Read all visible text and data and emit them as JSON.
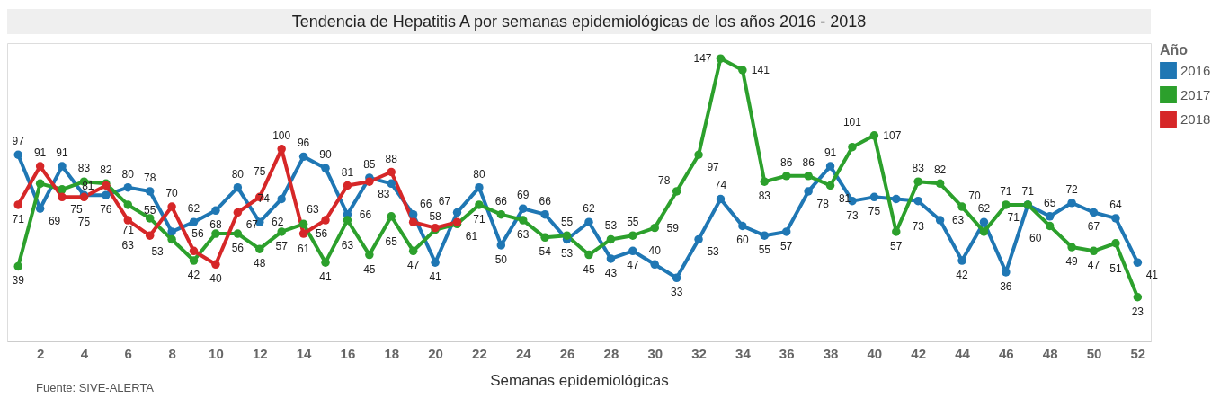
{
  "chart_data": {
    "type": "line",
    "title": "Tendencia de Hepatitis A por semanas epidemiológicas de los años 2016 - 2018",
    "xlabel": "Semanas epidemiológicas",
    "legend_title": "Año",
    "annotations": [
      "Fuente: SIVE-ALERTA"
    ],
    "x": [
      1,
      2,
      3,
      4,
      5,
      6,
      7,
      8,
      9,
      10,
      11,
      12,
      13,
      14,
      15,
      16,
      17,
      18,
      19,
      20,
      21,
      22,
      23,
      24,
      25,
      26,
      27,
      28,
      29,
      30,
      31,
      32,
      33,
      34,
      35,
      36,
      37,
      38,
      39,
      40,
      41,
      42,
      43,
      44,
      45,
      46,
      47,
      48,
      49,
      50,
      51,
      52
    ],
    "series": [
      {
        "name": "2016",
        "color": "#1f77b4",
        "values": [
          97,
          69,
          91,
          76,
          76,
          80,
          78,
          57,
          62,
          68,
          80,
          62,
          74,
          96,
          90,
          66,
          85,
          82,
          66,
          41,
          67,
          80,
          50,
          69,
          66,
          53,
          62,
          43,
          47,
          40,
          33,
          53,
          74,
          60,
          55,
          57,
          78,
          91,
          73,
          75,
          74,
          73,
          63,
          42,
          62,
          36,
          71,
          65,
          72,
          67,
          64,
          41
        ],
        "value_labels": [
          "97",
          "69",
          "91",
          null,
          "76",
          "80",
          "78",
          null,
          "62",
          "68",
          "80",
          "62",
          "74",
          "96",
          "90",
          "66",
          "85",
          null,
          "66",
          "41",
          "67",
          "80",
          "50",
          "69",
          "66",
          "53",
          "62",
          "43",
          "47",
          "40",
          "33",
          "53",
          "74",
          "60",
          "55",
          "57",
          "78",
          "91",
          "73",
          "75",
          null,
          "73",
          "63",
          "42",
          "62",
          "36",
          "71",
          "65",
          "72",
          "67",
          "64",
          "41"
        ]
      },
      {
        "name": "2017",
        "color": "#2ca02c",
        "values": [
          39,
          82,
          79,
          83,
          82,
          71,
          64,
          53,
          42,
          56,
          56,
          48,
          57,
          61,
          41,
          63,
          45,
          65,
          47,
          58,
          61,
          71,
          66,
          63,
          54,
          55,
          45,
          53,
          55,
          59,
          78,
          97,
          147,
          141,
          83,
          86,
          86,
          81,
          101,
          107,
          57,
          83,
          82,
          70,
          57,
          71,
          71,
          60,
          49,
          47,
          51,
          23
        ],
        "value_labels": [
          "39",
          null,
          null,
          "83",
          "82",
          "71",
          null,
          "53",
          "42",
          "56",
          "56",
          "48",
          "57",
          "61",
          "41",
          "63",
          "45",
          "65",
          "47",
          "58",
          "61",
          "71",
          "66",
          "63",
          "54",
          "55",
          "45",
          "53",
          "55",
          "59",
          "78",
          "97",
          "147",
          "141",
          "83",
          "86",
          "86",
          "81",
          "101",
          "107",
          "57",
          "83",
          "82",
          "70",
          null,
          "71",
          "71",
          "60",
          "49",
          "47",
          "51",
          "23"
        ]
      },
      {
        "name": "2018",
        "color": "#d62728",
        "values": [
          71,
          91,
          75,
          75,
          81,
          63,
          55,
          70,
          47,
          40,
          67,
          75,
          100,
          56,
          63,
          81,
          83,
          88,
          62,
          59,
          62,
          null,
          null,
          null,
          null,
          null,
          null,
          null,
          null,
          null,
          null,
          null,
          null,
          null,
          null,
          null,
          null,
          null,
          null,
          null,
          null,
          null,
          null,
          null,
          null,
          null,
          null,
          null,
          null,
          null,
          null,
          null
        ],
        "value_labels": [
          "71",
          "91",
          "75",
          "75",
          "81",
          "63",
          "55",
          "70",
          null,
          "40",
          "67",
          "75",
          "100",
          "56",
          "63",
          "81",
          "83",
          "88",
          null,
          null,
          null,
          null,
          null,
          null,
          null,
          null,
          null,
          null,
          null,
          null,
          null,
          null,
          null,
          null,
          null,
          null,
          null,
          null,
          null,
          null,
          null,
          null,
          null,
          null,
          null,
          null,
          null,
          null,
          null,
          null,
          null,
          null
        ]
      }
    ],
    "xlim": [
      0.5,
      52.6
    ],
    "xticks": [
      2,
      4,
      6,
      8,
      10,
      12,
      14,
      16,
      18,
      20,
      22,
      24,
      26,
      28,
      30,
      32,
      34,
      36,
      38,
      40,
      42,
      44,
      46,
      48,
      50,
      52
    ],
    "ylim": [
      0,
      155
    ],
    "tick_labels": "x",
    "grid": false,
    "legend": "right",
    "marker": "circle",
    "line_style": "solid"
  }
}
